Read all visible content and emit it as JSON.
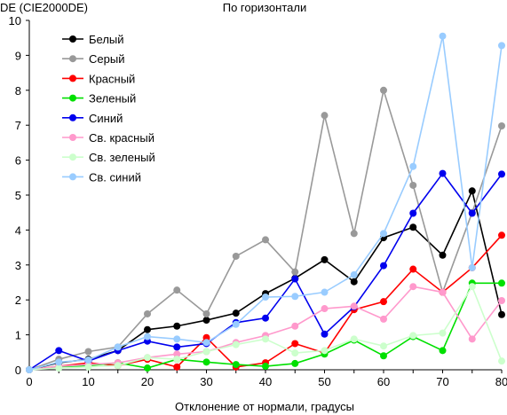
{
  "chart_data": {
    "type": "line",
    "title": "По горизонтали",
    "ylabel": "DE (CIE2000DE)",
    "xlabel": "Отклонение от нормали, градусы",
    "x": [
      0,
      5,
      10,
      15,
      20,
      25,
      30,
      35,
      40,
      45,
      50,
      55,
      60,
      65,
      70,
      75,
      80
    ],
    "xlim": [
      0,
      80
    ],
    "ylim": [
      0,
      10
    ],
    "xticks": [
      0,
      10,
      20,
      30,
      40,
      50,
      60,
      70,
      80
    ],
    "yticks": [
      0,
      1,
      2,
      3,
      4,
      5,
      6,
      7,
      8,
      9,
      10
    ],
    "grid": false,
    "legend_position": "top-left",
    "series": [
      {
        "name": "Белый",
        "color": "#000000",
        "values": [
          0,
          0.2,
          0.3,
          0.55,
          1.15,
          1.25,
          1.42,
          1.62,
          2.18,
          2.62,
          3.15,
          2.52,
          3.78,
          4.08,
          3.28,
          5.12,
          1.58
        ]
      },
      {
        "name": "Серый",
        "color": "#999999",
        "values": [
          0,
          0.3,
          0.52,
          0.65,
          1.6,
          2.28,
          1.6,
          3.25,
          3.72,
          2.8,
          7.28,
          3.9,
          8.0,
          5.28,
          2.22,
          4.5,
          6.98
        ]
      },
      {
        "name": "Красный",
        "color": "#ff0000",
        "values": [
          0,
          0.1,
          0.2,
          0.12,
          0.3,
          0.08,
          0.92,
          0.08,
          0.2,
          0.75,
          0.48,
          1.72,
          1.95,
          2.88,
          2.22,
          2.92,
          3.85
        ]
      },
      {
        "name": "Зеленый",
        "color": "#00e000",
        "values": [
          0,
          0.08,
          0.12,
          0.2,
          0.05,
          0.3,
          0.22,
          0.15,
          0.1,
          0.18,
          0.45,
          0.85,
          0.4,
          0.95,
          0.55,
          2.48,
          2.48
        ]
      },
      {
        "name": "Синий",
        "color": "#0000ee",
        "values": [
          0,
          0.55,
          0.25,
          0.55,
          0.82,
          0.65,
          0.75,
          1.35,
          1.48,
          2.6,
          1.02,
          1.8,
          2.98,
          4.48,
          5.62,
          4.48,
          5.6
        ]
      },
      {
        "name": "Св. красный",
        "color": "#ff99cc",
        "values": [
          0,
          0.1,
          0.15,
          0.2,
          0.35,
          0.45,
          0.52,
          0.78,
          0.98,
          1.25,
          1.75,
          1.82,
          1.45,
          2.38,
          2.22,
          0.88,
          1.98
        ]
      },
      {
        "name": "Св. зеленый",
        "color": "#ccffcc",
        "values": [
          0,
          0.05,
          0.08,
          0.12,
          0.35,
          0.3,
          0.52,
          0.72,
          0.88,
          0.48,
          0.55,
          0.88,
          0.68,
          0.98,
          1.05,
          2.38,
          0.25
        ]
      },
      {
        "name": "Св. синий",
        "color": "#99ccff",
        "values": [
          0,
          0.22,
          0.28,
          0.65,
          0.95,
          0.88,
          0.78,
          1.3,
          2.08,
          2.1,
          2.22,
          2.72,
          3.9,
          5.82,
          9.55,
          2.92,
          9.28
        ]
      }
    ]
  }
}
